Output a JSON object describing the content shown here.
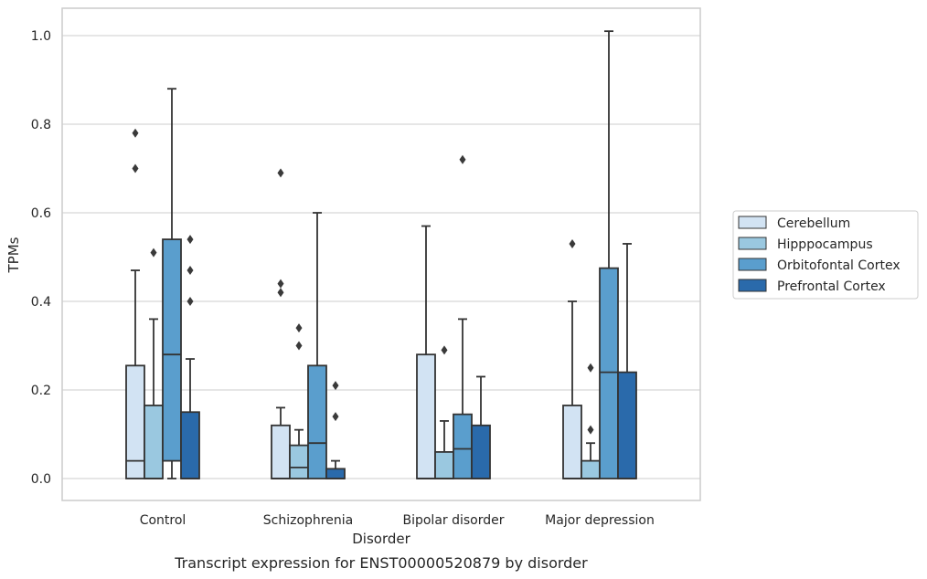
{
  "chart_data": {
    "type": "boxplot",
    "title": "Transcript expression for ENST00000520879 by disorder",
    "xlabel": "Disorder",
    "ylabel": "TPMs",
    "ylim": [
      -0.05,
      1.06
    ],
    "yticks": [
      0.0,
      0.2,
      0.4,
      0.6,
      0.8,
      1.0
    ],
    "ytick_labels": [
      "0.0",
      "0.2",
      "0.4",
      "0.6",
      "0.8",
      "1.0"
    ],
    "grid": true,
    "legend_position": "right",
    "categories": [
      "Control",
      "Schizophrenia",
      "Bipolar disorder",
      "Major depression"
    ],
    "series": [
      {
        "name": "Cerebellum",
        "color": "#d2e3f3",
        "boxes": [
          {
            "min": 0.0,
            "q1": 0.0,
            "median": 0.04,
            "q3": 0.255,
            "max": 0.47,
            "outliers": [
              0.7,
              0.78
            ]
          },
          {
            "min": 0.0,
            "q1": 0.0,
            "median": 0.0,
            "q3": 0.12,
            "max": 0.16,
            "outliers": [
              0.42,
              0.44,
              0.69
            ]
          },
          {
            "min": 0.0,
            "q1": 0.0,
            "median": 0.0,
            "q3": 0.28,
            "max": 0.57,
            "outliers": []
          },
          {
            "min": 0.0,
            "q1": 0.0,
            "median": 0.0,
            "q3": 0.165,
            "max": 0.4,
            "outliers": [
              0.53
            ]
          }
        ]
      },
      {
        "name": "Hipppocampus",
        "color": "#9ac8e0",
        "boxes": [
          {
            "min": 0.0,
            "q1": 0.0,
            "median": 0.0,
            "q3": 0.165,
            "max": 0.36,
            "outliers": [
              0.51
            ]
          },
          {
            "min": 0.0,
            "q1": 0.0,
            "median": 0.025,
            "q3": 0.075,
            "max": 0.11,
            "outliers": [
              0.3,
              0.34
            ]
          },
          {
            "min": 0.0,
            "q1": 0.0,
            "median": 0.0,
            "q3": 0.06,
            "max": 0.13,
            "outliers": [
              0.29
            ]
          },
          {
            "min": 0.0,
            "q1": 0.0,
            "median": 0.0,
            "q3": 0.04,
            "max": 0.08,
            "outliers": [
              0.11,
              0.25
            ]
          }
        ]
      },
      {
        "name": "Orbitofontal Cortex",
        "color": "#5a9ecd",
        "boxes": [
          {
            "min": 0.0,
            "q1": 0.04,
            "median": 0.28,
            "q3": 0.54,
            "max": 0.88,
            "outliers": []
          },
          {
            "min": 0.0,
            "q1": 0.0,
            "median": 0.08,
            "q3": 0.255,
            "max": 0.6,
            "outliers": []
          },
          {
            "min": 0.0,
            "q1": 0.0,
            "median": 0.067,
            "q3": 0.145,
            "max": 0.36,
            "outliers": [
              0.72
            ]
          },
          {
            "min": 0.0,
            "q1": 0.0,
            "median": 0.24,
            "q3": 0.475,
            "max": 1.01,
            "outliers": []
          }
        ]
      },
      {
        "name": "Prefrontal Cortex",
        "color": "#2a6aab",
        "boxes": [
          {
            "min": 0.0,
            "q1": 0.0,
            "median": 0.0,
            "q3": 0.15,
            "max": 0.27,
            "outliers": [
              0.4,
              0.47,
              0.54
            ]
          },
          {
            "min": 0.0,
            "q1": 0.0,
            "median": 0.0,
            "q3": 0.022,
            "max": 0.04,
            "outliers": [
              0.14,
              0.21
            ]
          },
          {
            "min": 0.0,
            "q1": 0.0,
            "median": 0.0,
            "q3": 0.12,
            "max": 0.23,
            "outliers": []
          },
          {
            "min": 0.0,
            "q1": 0.0,
            "median": 0.0,
            "q3": 0.24,
            "max": 0.53,
            "outliers": []
          }
        ]
      }
    ]
  }
}
